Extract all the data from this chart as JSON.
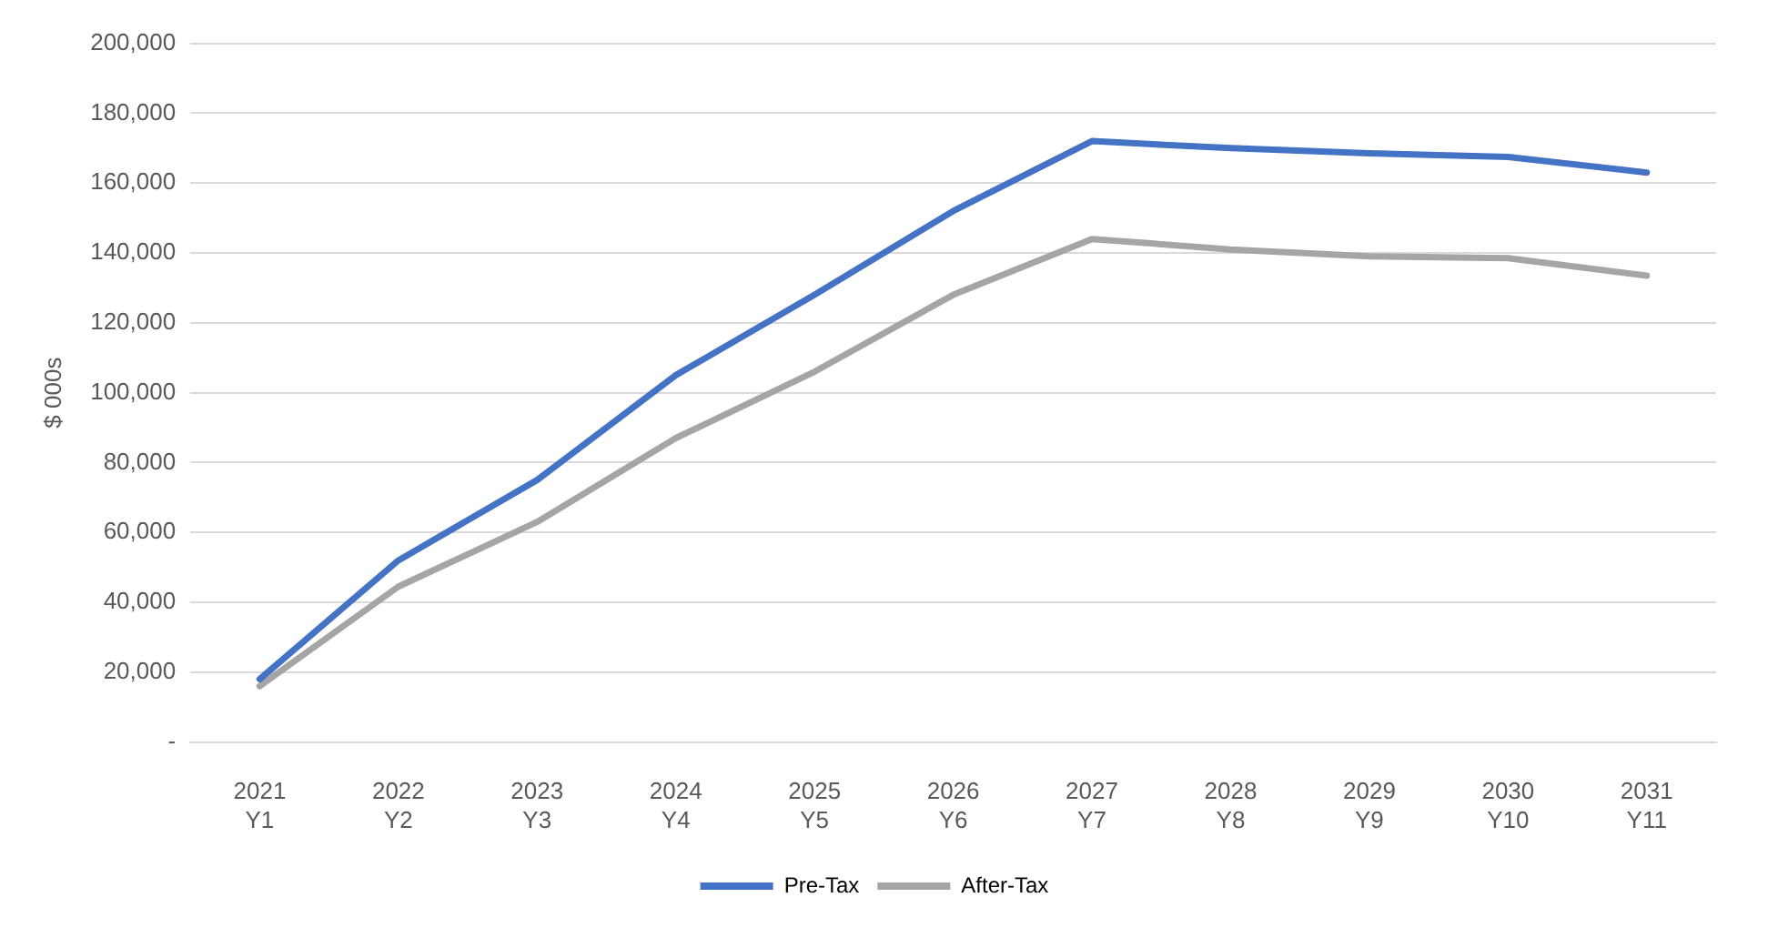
{
  "chart_data": {
    "type": "line",
    "ylabel": "$ 000s",
    "categories": [
      "2021\nY1",
      "2022\nY2",
      "2023\nY3",
      "2024\nY4",
      "2025\nY5",
      "2026\nY6",
      "2027\nY7",
      "2028\nY8",
      "2029\nY9",
      "2030\nY10",
      "2031\nY11"
    ],
    "series": [
      {
        "name": "Pre-Tax",
        "color": "#4472c4",
        "values": [
          18000,
          52000,
          75000,
          105000,
          128000,
          152000,
          172000,
          170000,
          168500,
          167500,
          163000
        ]
      },
      {
        "name": "After-Tax",
        "color": "#a5a5a5",
        "values": [
          16000,
          44500,
          63000,
          87000,
          106000,
          128000,
          144000,
          141000,
          139000,
          138500,
          133500
        ]
      }
    ],
    "ylim": [
      0,
      200000
    ],
    "yticks": [
      {
        "value": 0,
        "label": "-"
      },
      {
        "value": 20000,
        "label": "20,000"
      },
      {
        "value": 40000,
        "label": "40,000"
      },
      {
        "value": 60000,
        "label": "60,000"
      },
      {
        "value": 80000,
        "label": "80,000"
      },
      {
        "value": 100000,
        "label": "100,000"
      },
      {
        "value": 120000,
        "label": "120,000"
      },
      {
        "value": 140000,
        "label": "140,000"
      },
      {
        "value": 160000,
        "label": "160,000"
      },
      {
        "value": 180000,
        "label": "180,000"
      },
      {
        "value": 200000,
        "label": "200,000"
      }
    ],
    "grid": "y",
    "legend": "bottom",
    "marker": "none",
    "line_style": "solid"
  }
}
